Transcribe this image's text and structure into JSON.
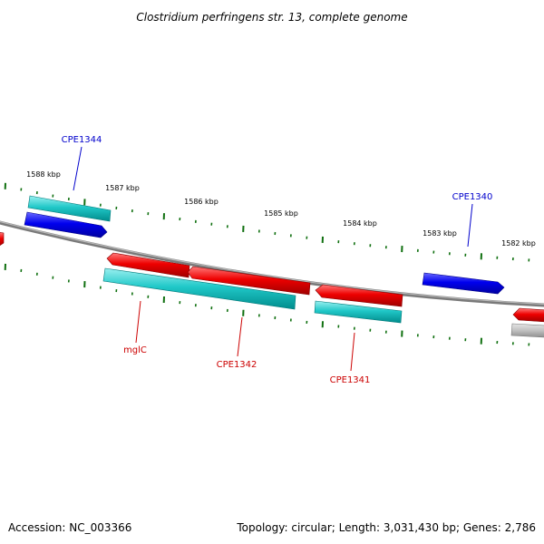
{
  "title": "Clostridium perfringens str. 13, complete genome",
  "footer": {
    "accession": "Accession: NC_003366",
    "summary": "Topology: circular; Length: 3,031,430 bp; Genes: 2,786"
  },
  "ruler": {
    "labels": [
      "1588 kbp",
      "1587 kbp",
      "1586 kbp",
      "1585 kbp",
      "1584 kbp",
      "1583 kbp",
      "1582 kbp"
    ]
  },
  "genes": [
    {
      "name": "CPE1344",
      "strand": "forward",
      "color": "#0000ee"
    },
    {
      "name": "CPE1340",
      "strand": "forward",
      "color": "#0000ee"
    },
    {
      "name": "mglC",
      "strand": "reverse",
      "color": "#ee0000"
    },
    {
      "name": "CPE1342",
      "strand": "reverse",
      "color": "#ee0000"
    },
    {
      "name": "CPE1341",
      "strand": "reverse",
      "color": "#ee0000"
    }
  ],
  "colors": {
    "forward_gene": "#0000ee",
    "reverse_gene": "#ee0000",
    "cds": "#00c0c0",
    "tick": "#107010",
    "backbone": "#808080",
    "label_forward": "#0000cc",
    "label_reverse": "#cc0000"
  }
}
